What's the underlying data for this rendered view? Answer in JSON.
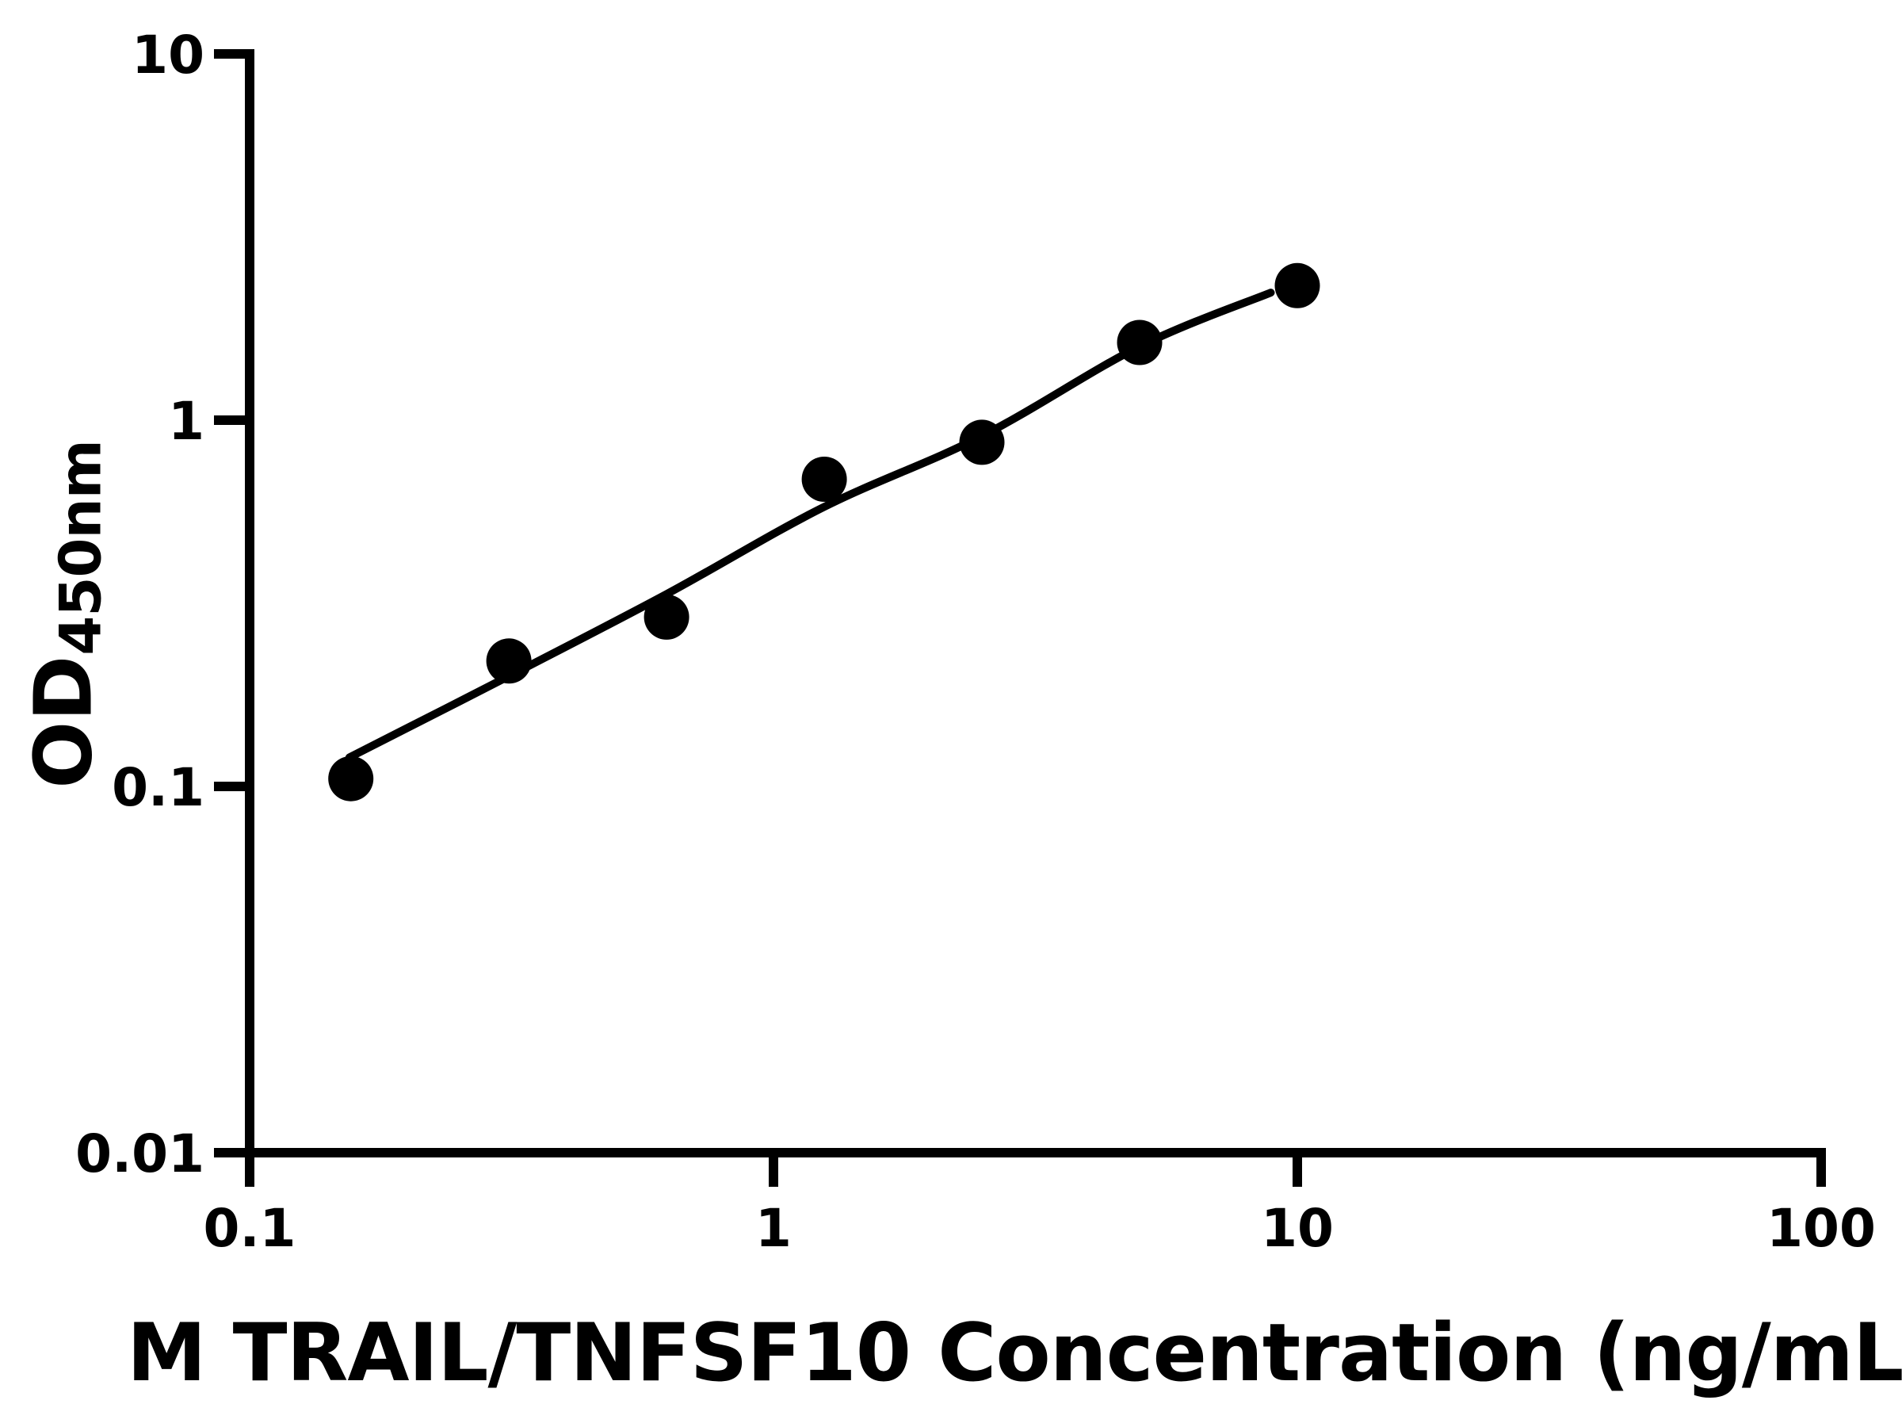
{
  "figure": {
    "background_color": "#ffffff",
    "ink_color": "#000000"
  },
  "chart_data": {
    "type": "scatter",
    "title": "",
    "xlabel": "M TRAIL/TNFSF10 Concentration (ng/mL",
    "ylabel": {
      "main": "OD",
      "subscript": "450nm"
    },
    "x_scale": "log",
    "y_scale": "log",
    "xlim": [
      0.1,
      100
    ],
    "ylim": [
      0.01,
      10
    ],
    "x_ticks": [
      {
        "value": 0.1,
        "label": "0.1"
      },
      {
        "value": 1,
        "label": "1"
      },
      {
        "value": 10,
        "label": "10"
      },
      {
        "value": 100,
        "label": "100"
      }
    ],
    "y_ticks": [
      {
        "value": 10,
        "label": "10"
      },
      {
        "value": 1,
        "label": "1"
      },
      {
        "value": 0.1,
        "label": "0.1"
      },
      {
        "value": 0.01,
        "label": "0.01"
      }
    ],
    "grid": false,
    "legend": null,
    "marker": "filled-circle",
    "points": [
      {
        "x": 0.156,
        "y": 0.105
      },
      {
        "x": 0.3125,
        "y": 0.22
      },
      {
        "x": 0.625,
        "y": 0.29
      },
      {
        "x": 1.25,
        "y": 0.69
      },
      {
        "x": 2.5,
        "y": 0.87
      },
      {
        "x": 5,
        "y": 1.63
      },
      {
        "x": 10,
        "y": 2.33
      }
    ],
    "fit_curve": [
      {
        "x": 0.155,
        "y": 0.12
      },
      {
        "x": 0.3125,
        "y": 0.2
      },
      {
        "x": 0.625,
        "y": 0.335
      },
      {
        "x": 1.25,
        "y": 0.58
      },
      {
        "x": 2.5,
        "y": 0.905
      },
      {
        "x": 5,
        "y": 1.59
      },
      {
        "x": 8.9,
        "y": 2.23
      }
    ]
  }
}
